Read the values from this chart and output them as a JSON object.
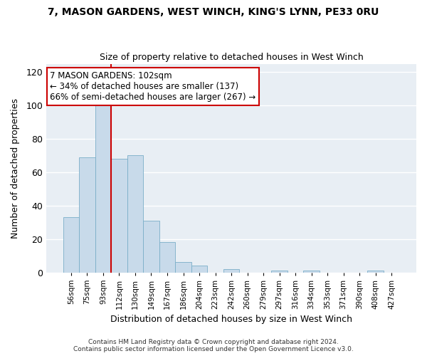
{
  "title": "7, MASON GARDENS, WEST WINCH, KING'S LYNN, PE33 0RU",
  "subtitle": "Size of property relative to detached houses in West Winch",
  "xlabel": "Distribution of detached houses by size in West Winch",
  "ylabel": "Number of detached properties",
  "bar_color": "#c8daea",
  "bar_edge_color": "#7aaec8",
  "bin_labels": [
    "56sqm",
    "75sqm",
    "93sqm",
    "112sqm",
    "130sqm",
    "149sqm",
    "167sqm",
    "186sqm",
    "204sqm",
    "223sqm",
    "242sqm",
    "260sqm",
    "279sqm",
    "297sqm",
    "316sqm",
    "334sqm",
    "353sqm",
    "371sqm",
    "390sqm",
    "408sqm",
    "427sqm"
  ],
  "bar_heights": [
    33,
    69,
    100,
    68,
    70,
    31,
    18,
    6,
    4,
    0,
    2,
    0,
    0,
    1,
    0,
    1,
    0,
    0,
    0,
    1,
    0
  ],
  "vertical_line_color": "#cc0000",
  "annotation_text": "7 MASON GARDENS: 102sqm\n← 34% of detached houses are smaller (137)\n66% of semi-detached houses are larger (267) →",
  "annotation_box_facecolor": "white",
  "annotation_box_edgecolor": "#cc0000",
  "ylim": [
    0,
    125
  ],
  "yticks": [
    0,
    20,
    40,
    60,
    80,
    100,
    120
  ],
  "footer_line1": "Contains HM Land Registry data © Crown copyright and database right 2024.",
  "footer_line2": "Contains public sector information licensed under the Open Government Licence v3.0.",
  "background_color": "#ffffff",
  "plot_bg_color": "#e8eef4",
  "grid_color": "#ffffff"
}
